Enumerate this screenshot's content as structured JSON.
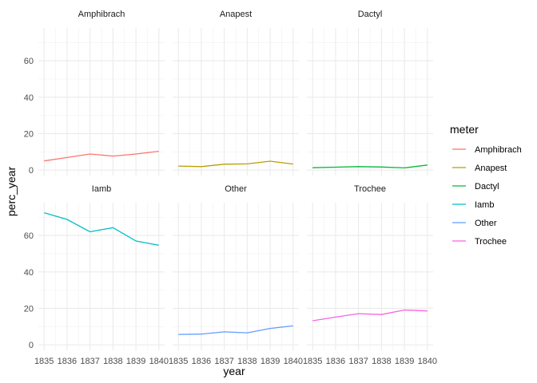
{
  "chart_data": {
    "type": "line",
    "facet_by": "meter",
    "xlabel": "year",
    "ylabel": "perc_year",
    "x": [
      1835,
      1836,
      1837,
      1838,
      1839,
      1840
    ],
    "x_ticks": [
      "1835",
      "1836",
      "1837",
      "1838",
      "1839",
      "1840"
    ],
    "ylim": [
      0,
      75
    ],
    "y_ticks": [
      "0",
      "20",
      "40",
      "60"
    ],
    "grid": true,
    "legend": {
      "title": "meter",
      "position": "right"
    },
    "series": [
      {
        "name": "Amphibrach",
        "color": "#F8766D",
        "values": [
          5.0,
          6.9,
          8.8,
          7.7,
          8.8,
          10.3
        ]
      },
      {
        "name": "Anapest",
        "color": "#B79F00",
        "values": [
          2.2,
          1.9,
          3.2,
          3.4,
          4.9,
          3.3
        ]
      },
      {
        "name": "Dactyl",
        "color": "#00BA38",
        "values": [
          1.3,
          1.6,
          1.9,
          1.7,
          1.2,
          2.8
        ]
      },
      {
        "name": "Iamb",
        "color": "#00BFC4",
        "values": [
          72.5,
          68.8,
          62.0,
          64.3,
          57.0,
          54.6
        ]
      },
      {
        "name": "Other",
        "color": "#619CFF",
        "values": [
          5.7,
          5.9,
          7.1,
          6.6,
          9.0,
          10.4
        ]
      },
      {
        "name": "Trochee",
        "color": "#F564E3",
        "values": [
          13.2,
          15.2,
          17.1,
          16.6,
          19.1,
          18.6
        ]
      }
    ]
  }
}
